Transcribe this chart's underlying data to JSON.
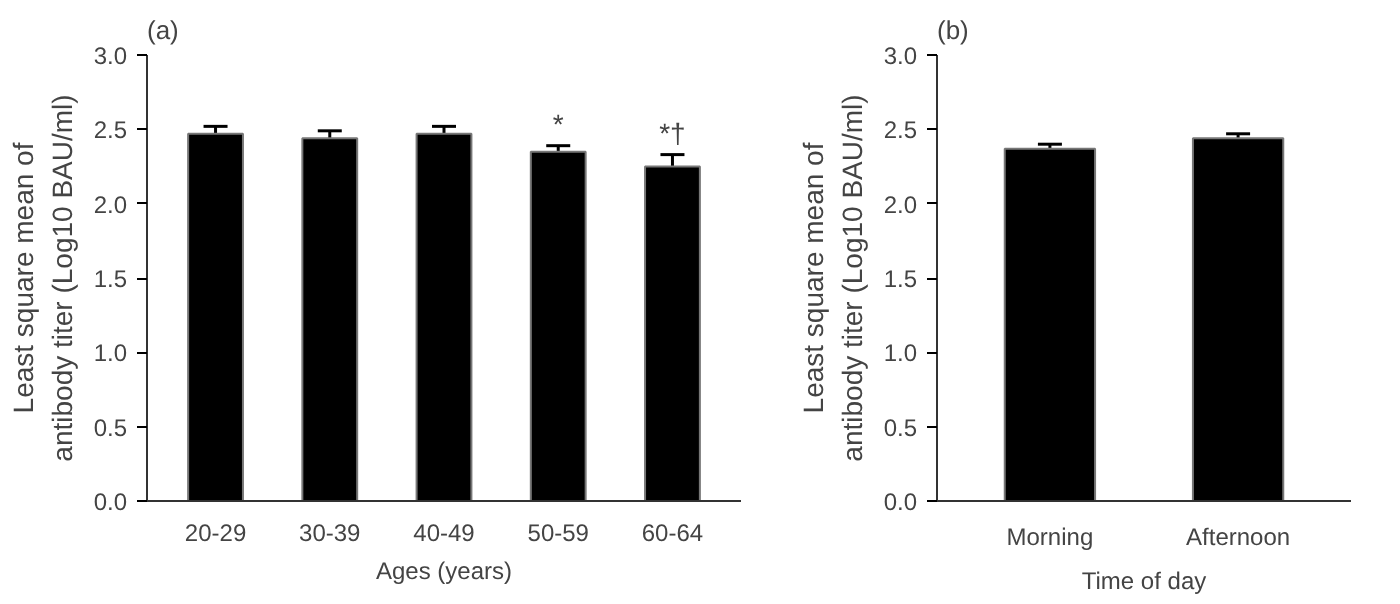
{
  "chart_data": [
    {
      "type": "bar",
      "title": "(a)",
      "xlabel": "Ages (years)",
      "ylabel": "Least square mean of\nantibody titer (Log10 BAU/ml)",
      "categories": [
        "20-29",
        "30-39",
        "40-49",
        "50-59",
        "60-64"
      ],
      "values": [
        2.47,
        2.44,
        2.47,
        2.35,
        2.25
      ],
      "errors": [
        0.05,
        0.05,
        0.05,
        0.04,
        0.08
      ],
      "color": "#000000",
      "ylim": [
        0,
        3.0
      ],
      "yticks": [
        {
          "value": 0,
          "label": "0.0"
        },
        {
          "value": 0.5,
          "label": "0.5"
        },
        {
          "value": 1,
          "label": "1.0"
        },
        {
          "value": 1.5,
          "label": "1.5"
        },
        {
          "value": 2,
          "label": "2.0"
        },
        {
          "value": 2.5,
          "label": "2.5"
        },
        {
          "value": 3,
          "label": "3.0"
        }
      ],
      "annotations": [
        {
          "text": "*",
          "x": "50-59",
          "y": 2.43
        },
        {
          "text": "*†",
          "x": "60-64",
          "y": 2.37
        }
      ]
    },
    {
      "type": "bar",
      "title": "(b)",
      "xlabel": "Time of day",
      "ylabel": "Least square mean of\nantibody titer (Log10 BAU/ml)",
      "categories": [
        "Morning",
        "Afternoon"
      ],
      "values": [
        2.37,
        2.44
      ],
      "errors": [
        0.03,
        0.03
      ],
      "color": "#000000",
      "ylim": [
        0,
        3.0
      ],
      "yticks": [
        {
          "value": 0,
          "label": "0.0"
        },
        {
          "value": 0.5,
          "label": "0.5"
        },
        {
          "value": 1,
          "label": "1.0"
        },
        {
          "value": 1.5,
          "label": "1.5"
        },
        {
          "value": 2,
          "label": "2.0"
        },
        {
          "value": 2.5,
          "label": "2.5"
        },
        {
          "value": 3,
          "label": "3.0"
        }
      ]
    }
  ]
}
